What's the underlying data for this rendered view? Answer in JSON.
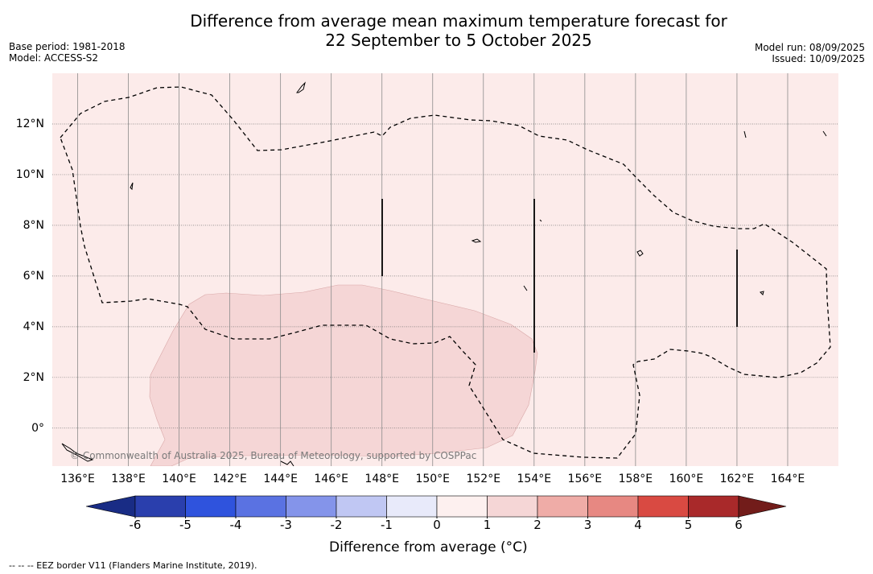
{
  "title": "Difference from average mean maximum temperature forecast for",
  "title_line2": "22 September to 5 October 2025",
  "meta_left": [
    "Base period: 1981-2018",
    "Model: ACCESS-S2"
  ],
  "meta_right": [
    "Model run: 08/09/2025",
    "Issued: 10/09/2025"
  ],
  "copyright": "© Commonwealth of Australia 2025, Bureau of Meteorology, supported by COSPPac",
  "map": {
    "lon_range": [
      135,
      166
    ],
    "lat_range": [
      -1.5,
      14
    ],
    "lon_ticks": [
      136,
      138,
      140,
      142,
      144,
      146,
      148,
      150,
      152,
      154,
      156,
      158,
      160,
      162,
      164
    ],
    "lon_tick_labels": [
      "136°E",
      "138°E",
      "140°E",
      "142°E",
      "144°E",
      "146°E",
      "148°E",
      "150°E",
      "152°E",
      "154°E",
      "156°E",
      "158°E",
      "160°E",
      "162°E",
      "164°E"
    ],
    "lat_ticks": [
      0,
      2,
      4,
      6,
      8,
      10,
      12
    ],
    "lat_tick_labels": [
      "0°",
      "2°N",
      "4°N",
      "6°N",
      "8°N",
      "10°N",
      "12°N"
    ],
    "background_anomaly_color": "#fcebea",
    "anomaly_1_to_2_color": "#f5d6d6"
  },
  "colorbar": {
    "ticks": [
      "-6",
      "-5",
      "-4",
      "-3",
      "-2",
      "-1",
      "0",
      "1",
      "2",
      "3",
      "4",
      "5",
      "6"
    ],
    "colors": [
      "#2a3fad",
      "#2f53dd",
      "#5a72e2",
      "#8494ea",
      "#c0c7f3",
      "#e8eafa",
      "#fdf0ef",
      "#f5d6d6",
      "#efaca7",
      "#e78882",
      "#d94a42",
      "#a9292a"
    ],
    "under_color": "#192c85",
    "over_color": "#721c1a",
    "label": "Difference from average (°C)"
  },
  "footnote": "--  --  -- EEZ border V11 (Flanders Marine Institute, 2019)."
}
